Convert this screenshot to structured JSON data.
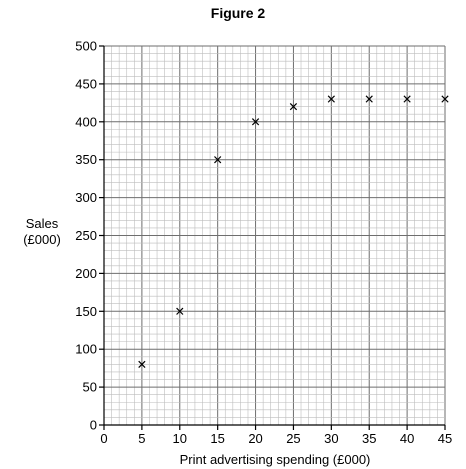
{
  "chart_data": {
    "type": "scatter",
    "title": "Figure 2",
    "xlabel": "Print advertising spending (£000)",
    "ylabel": [
      "Sales",
      "(£000)"
    ],
    "xlim": [
      0,
      45
    ],
    "ylim": [
      0,
      500
    ],
    "x_ticks": [
      0,
      5,
      10,
      15,
      20,
      25,
      30,
      35,
      40,
      45
    ],
    "y_ticks": [
      0,
      50,
      100,
      150,
      200,
      250,
      300,
      350,
      400,
      450,
      500
    ],
    "grid": true,
    "series": [
      {
        "marker": "cross",
        "points": [
          {
            "x": 5,
            "y": 80
          },
          {
            "x": 10,
            "y": 150
          },
          {
            "x": 15,
            "y": 350
          },
          {
            "x": 20,
            "y": 400
          },
          {
            "x": 25,
            "y": 420
          },
          {
            "x": 30,
            "y": 430
          },
          {
            "x": 35,
            "y": 430
          },
          {
            "x": 40,
            "y": 430
          },
          {
            "x": 45,
            "y": 430
          }
        ]
      }
    ]
  }
}
